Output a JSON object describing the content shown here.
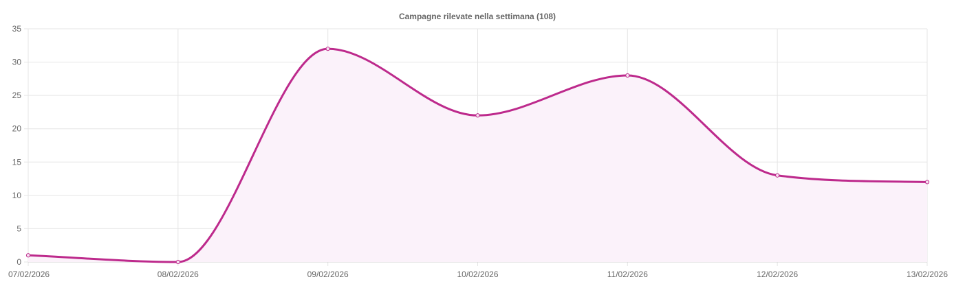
{
  "chart_data": {
    "type": "line",
    "title": "Campagne rilevate nella settimana (108)",
    "xlabel": "",
    "ylabel": "",
    "categories": [
      "07/02/2026",
      "08/02/2026",
      "09/02/2026",
      "10/02/2026",
      "11/02/2026",
      "12/02/2026",
      "13/02/2026"
    ],
    "series": [
      {
        "values": [
          1,
          0,
          32,
          22,
          28,
          13,
          12
        ],
        "color": "#bd2a8c"
      }
    ],
    "ylim": [
      0,
      35
    ],
    "yticks": [
      "0",
      "5",
      "10",
      "15",
      "20",
      "25",
      "30",
      "35"
    ],
    "grid": true,
    "legend": "none",
    "fill": true,
    "fill_color": "#fbf2fa"
  }
}
